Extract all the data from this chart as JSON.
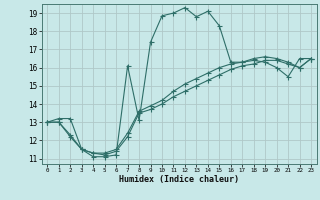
{
  "xlabel": "Humidex (Indice chaleur)",
  "bg_color": "#c8e8e8",
  "grid_color": "#b0c8c8",
  "line_color": "#2e6e68",
  "xlim": [
    -0.5,
    23.5
  ],
  "ylim": [
    10.7,
    19.5
  ],
  "xticks": [
    0,
    1,
    2,
    3,
    4,
    5,
    6,
    7,
    8,
    9,
    10,
    11,
    12,
    13,
    14,
    15,
    16,
    17,
    18,
    19,
    20,
    21,
    22,
    23
  ],
  "yticks": [
    11,
    12,
    13,
    14,
    15,
    16,
    17,
    18,
    19
  ],
  "series1_x": [
    0,
    1,
    2,
    3,
    4,
    5,
    6,
    7,
    8,
    9,
    10,
    11,
    12,
    13,
    14,
    15,
    16,
    17,
    18,
    19,
    20,
    21,
    22,
    23
  ],
  "series1_y": [
    13.0,
    13.2,
    13.2,
    11.5,
    11.1,
    11.1,
    11.2,
    16.1,
    13.1,
    17.4,
    18.85,
    19.0,
    19.3,
    18.8,
    19.1,
    18.3,
    16.3,
    16.3,
    16.4,
    16.3,
    16.0,
    15.5,
    16.5,
    16.5
  ],
  "series2_x": [
    0,
    1,
    2,
    3,
    4,
    5,
    6,
    7,
    8,
    9,
    10,
    11,
    12,
    13,
    14,
    15,
    16,
    17,
    18,
    19,
    20,
    21,
    22,
    23
  ],
  "series2_y": [
    13.0,
    13.0,
    12.2,
    11.5,
    11.3,
    11.2,
    11.4,
    12.2,
    13.5,
    13.7,
    14.0,
    14.4,
    14.7,
    15.0,
    15.3,
    15.6,
    15.9,
    16.1,
    16.2,
    16.4,
    16.4,
    16.2,
    16.0,
    16.5
  ],
  "series3_x": [
    0,
    1,
    2,
    3,
    4,
    5,
    6,
    7,
    8,
    9,
    10,
    11,
    12,
    13,
    14,
    15,
    16,
    17,
    18,
    19,
    20,
    21,
    22,
    23
  ],
  "series3_y": [
    13.0,
    13.0,
    12.3,
    11.5,
    11.3,
    11.3,
    11.5,
    12.4,
    13.6,
    13.9,
    14.2,
    14.7,
    15.1,
    15.4,
    15.7,
    16.0,
    16.2,
    16.3,
    16.5,
    16.6,
    16.5,
    16.3,
    16.0,
    16.5
  ],
  "xlabel_fontsize": 6,
  "xlabel_fontweight": "bold",
  "xtick_fontsize": 4.2,
  "ytick_fontsize": 5.5,
  "linewidth": 0.8,
  "markersize": 1.8
}
